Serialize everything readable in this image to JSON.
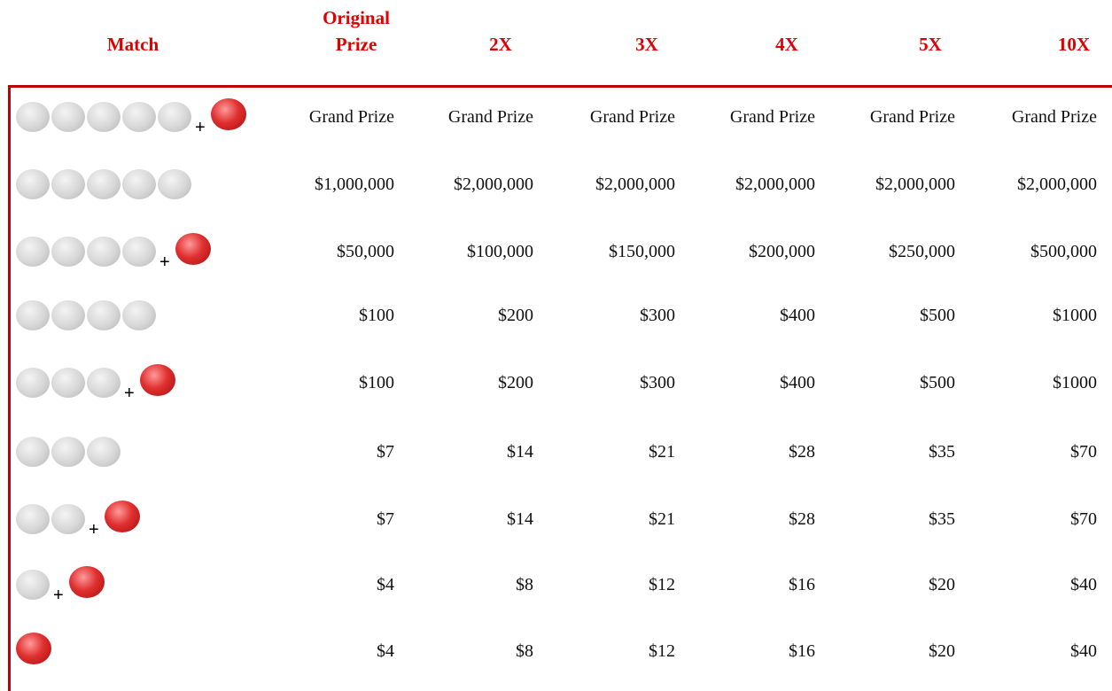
{
  "table": {
    "columns": [
      "Match",
      "Original Prize",
      "2X",
      "3X",
      "4X",
      "5X",
      "10X"
    ],
    "rows": [
      {
        "match": {
          "white": 5,
          "red": true,
          "plus": "+"
        },
        "prizes": [
          "Grand Prize",
          "Grand Prize",
          "Grand Prize",
          "Grand Prize",
          "Grand Prize",
          "Grand Prize"
        ]
      },
      {
        "match": {
          "white": 5,
          "red": false
        },
        "prizes": [
          "$1,000,000",
          "$2,000,000",
          "$2,000,000",
          "$2,000,000",
          "$2,000,000",
          "$2,000,000"
        ]
      },
      {
        "match": {
          "white": 4,
          "red": true,
          "plus": "+"
        },
        "prizes": [
          "$50,000",
          "$100,000",
          "$150,000",
          "$200,000",
          "$250,000",
          "$500,000"
        ]
      },
      {
        "match": {
          "white": 4,
          "red": false
        },
        "prizes": [
          "$100",
          "$200",
          "$300",
          "$400",
          "$500",
          "$1000"
        ]
      },
      {
        "match": {
          "white": 3,
          "red": true,
          "plus": "+"
        },
        "prizes": [
          "$100",
          "$200",
          "$300",
          "$400",
          "$500",
          "$1000"
        ]
      },
      {
        "match": {
          "white": 3,
          "red": false
        },
        "prizes": [
          "$7",
          "$14",
          "$21",
          "$28",
          "$35",
          "$70"
        ]
      },
      {
        "match": {
          "white": 2,
          "red": true,
          "plus": "+"
        },
        "prizes": [
          "$7",
          "$14",
          "$21",
          "$28",
          "$35",
          "$70"
        ]
      },
      {
        "match": {
          "white": 1,
          "red": true,
          "plus": "+"
        },
        "prizes": [
          "$4",
          "$8",
          "$12",
          "$16",
          "$20",
          "$40"
        ]
      },
      {
        "match": {
          "white": 0,
          "red": true
        },
        "prizes": [
          "$4",
          "$8",
          "$12",
          "$16",
          "$20",
          "$40"
        ]
      }
    ]
  }
}
